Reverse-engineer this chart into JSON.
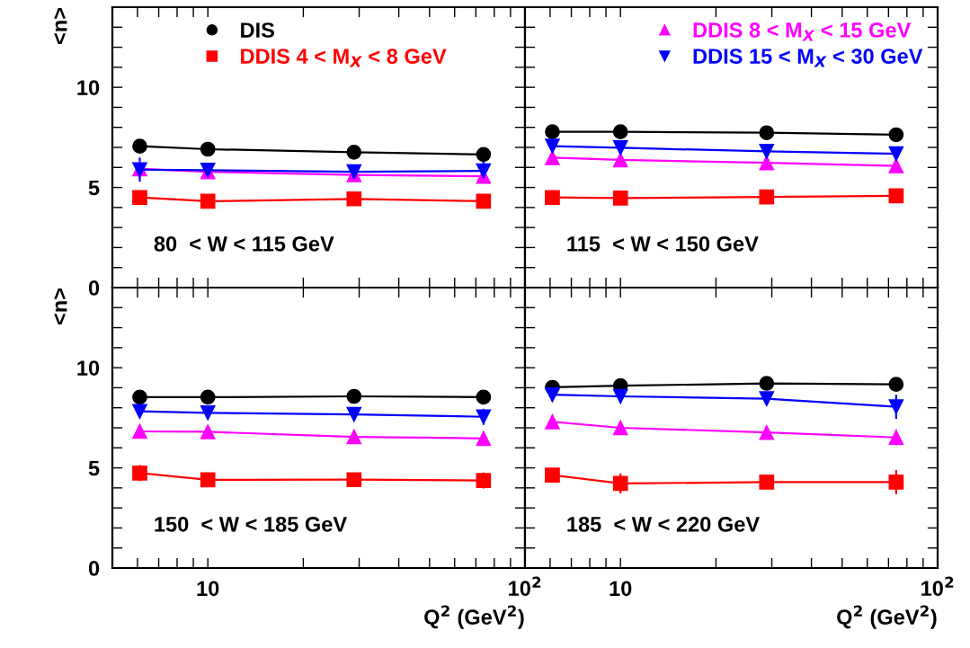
{
  "chart_data": [
    {
      "type": "line",
      "ylabel": "<n>",
      "x": [
        6.1,
        10,
        28.9,
        74
      ],
      "xlim": [
        5,
        100
      ],
      "ylim": [
        0,
        14
      ],
      "log": "x",
      "grid": false,
      "legend": "top",
      "tick_labels": "y",
      "annotations": [
        "80  < W < 115 GeV"
      ],
      "xticks": [
        {
          "value": 5,
          "label": null
        },
        {
          "value": 6,
          "label": null
        },
        {
          "value": 7,
          "label": null
        },
        {
          "value": 8,
          "label": null
        },
        {
          "value": 9,
          "label": null
        },
        {
          "value": 10,
          "label": null
        },
        {
          "value": 20,
          "label": null
        },
        {
          "value": 30,
          "label": null
        },
        {
          "value": 40,
          "label": null
        },
        {
          "value": 50,
          "label": null
        },
        {
          "value": 60,
          "label": null
        },
        {
          "value": 70,
          "label": null
        },
        {
          "value": 80,
          "label": null
        },
        {
          "value": 90,
          "label": null
        },
        {
          "value": 100,
          "label": null
        }
      ],
      "yticks": [
        0,
        {
          "value": 1,
          "label": null
        },
        {
          "value": 2,
          "label": null
        },
        {
          "value": 3,
          "label": null
        },
        {
          "value": 4,
          "label": null
        },
        5,
        {
          "value": 6,
          "label": null
        },
        {
          "value": 7,
          "label": null
        },
        {
          "value": 8,
          "label": null
        },
        {
          "value": 9,
          "label": null
        },
        10,
        {
          "value": 11,
          "label": null
        },
        {
          "value": 12,
          "label": null
        },
        {
          "value": 13,
          "label": null
        }
      ],
      "series": [
        {
          "name": "DIS",
          "color": "#000000",
          "marker": "circle",
          "values": [
            7.06,
            6.91,
            6.76,
            6.65
          ],
          "errors": [
            0.1,
            0.25,
            0.3,
            0.2
          ]
        },
        {
          "name": "DDIS 4 < M$_{X}$ < 8 GeV",
          "color": "#ff0000",
          "marker": "square",
          "values": [
            4.5,
            4.31,
            4.43,
            4.31
          ],
          "errors": [
            0.2,
            0.3,
            0.15,
            0.3
          ]
        },
        {
          "color": "#ff00ff",
          "marker": "triangle",
          "values": [
            5.93,
            5.78,
            5.63,
            5.56
          ],
          "errors": [
            null,
            0.2,
            0.2,
            0.3
          ]
        },
        {
          "color": "#0000ff",
          "marker": "triangle_down",
          "values": [
            5.89,
            5.86,
            5.78,
            5.83
          ],
          "errors": [
            0.6,
            0.25,
            0.3,
            0.5
          ]
        }
      ]
    },
    {
      "type": "line",
      "x": [
        6.1,
        10,
        28.9,
        74
      ],
      "xlim": [
        5,
        100
      ],
      "ylim": [
        0,
        14
      ],
      "log": "x",
      "grid": false,
      "legend": "top right",
      "tick_labels": false,
      "annotations": [
        "115  < W < 150 GeV"
      ],
      "xticks": [
        {
          "value": 5,
          "label": null
        },
        {
          "value": 6,
          "label": null
        },
        {
          "value": 7,
          "label": null
        },
        {
          "value": 8,
          "label": null
        },
        {
          "value": 9,
          "label": null
        },
        {
          "value": 10,
          "label": null
        },
        {
          "value": 20,
          "label": null
        },
        {
          "value": 30,
          "label": null
        },
        {
          "value": 40,
          "label": null
        },
        {
          "value": 50,
          "label": null
        },
        {
          "value": 60,
          "label": null
        },
        {
          "value": 70,
          "label": null
        },
        {
          "value": 80,
          "label": null
        },
        {
          "value": 90,
          "label": null
        },
        {
          "value": 100,
          "label": null
        }
      ],
      "yticks": [
        {
          "value": 0,
          "label": null
        },
        {
          "value": 1,
          "label": null
        },
        {
          "value": 2,
          "label": null
        },
        {
          "value": 3,
          "label": null
        },
        {
          "value": 4,
          "label": null
        },
        {
          "value": 5,
          "label": null
        },
        {
          "value": 6,
          "label": null
        },
        {
          "value": 7,
          "label": null
        },
        {
          "value": 8,
          "label": null
        },
        {
          "value": 9,
          "label": null
        },
        {
          "value": 10,
          "label": null
        },
        {
          "value": 11,
          "label": null
        },
        {
          "value": 12,
          "label": null
        },
        {
          "value": 13,
          "label": null
        }
      ],
      "series": [
        {
          "color": "#000000",
          "marker": "circle",
          "values": [
            7.78,
            7.78,
            7.73,
            7.63
          ],
          "errors": [
            0.1,
            0.1,
            0.1,
            0.1
          ]
        },
        {
          "color": "#ff0000",
          "marker": "square",
          "values": [
            4.5,
            4.47,
            4.53,
            4.58
          ],
          "errors": [
            0.35,
            0.3,
            0.15,
            0.35
          ]
        },
        {
          "name": "DDIS 8 < M$_{X}$ < 15 GeV",
          "color": "#ff00ff",
          "marker": "triangle",
          "values": [
            6.49,
            6.38,
            6.23,
            6.08
          ],
          "errors": [
            0.15,
            0.2,
            0.15,
            0.2
          ]
        },
        {
          "name": "DDIS 15 < M$_{X}$ < 30 GeV",
          "color": "#0000ff",
          "marker": "triangle_down",
          "values": [
            7.06,
            6.98,
            6.8,
            6.68
          ],
          "errors": [
            0.2,
            0.2,
            0.2,
            0.3
          ]
        }
      ]
    },
    {
      "type": "line",
      "ylabel": "<n>",
      "xlabel": "Q$^{2}$ (GeV$^{2}$)",
      "x": [
        6.1,
        10,
        28.9,
        74
      ],
      "xlim": [
        5,
        100
      ],
      "ylim": [
        0,
        14
      ],
      "log": "x",
      "grid": false,
      "annotations": [
        "150  < W < 185 GeV"
      ],
      "xticks": [
        {
          "value": 5,
          "label": null
        },
        {
          "value": 6,
          "label": null
        },
        {
          "value": 7,
          "label": null
        },
        {
          "value": 8,
          "label": null
        },
        {
          "value": 9,
          "label": null
        },
        {
          "value": 10,
          "label": "10"
        },
        {
          "value": 20,
          "label": null
        },
        {
          "value": 30,
          "label": null
        },
        {
          "value": 40,
          "label": null
        },
        {
          "value": 50,
          "label": null
        },
        {
          "value": 60,
          "label": null
        },
        {
          "value": 70,
          "label": null
        },
        {
          "value": 80,
          "label": null
        },
        {
          "value": 90,
          "label": null
        },
        {
          "value": 100,
          "label": "10$^{2}$"
        }
      ],
      "yticks": [
        0,
        {
          "value": 1,
          "label": null
        },
        {
          "value": 2,
          "label": null
        },
        {
          "value": 3,
          "label": null
        },
        {
          "value": 4,
          "label": null
        },
        5,
        {
          "value": 6,
          "label": null
        },
        {
          "value": 7,
          "label": null
        },
        {
          "value": 8,
          "label": null
        },
        {
          "value": 9,
          "label": null
        },
        10,
        {
          "value": 11,
          "label": null
        },
        {
          "value": 12,
          "label": null
        },
        {
          "value": 13,
          "label": null
        }
      ],
      "series": [
        {
          "color": "#000000",
          "marker": "circle",
          "values": [
            8.53,
            8.53,
            8.57,
            8.53
          ],
          "errors": [
            0.1,
            0.1,
            0.1,
            0.1
          ]
        },
        {
          "color": "#ff0000",
          "marker": "square",
          "values": [
            4.74,
            4.4,
            4.41,
            4.37
          ],
          "errors": [
            0.4,
            0.2,
            0.2,
            0.4
          ]
        },
        {
          "color": "#ff00ff",
          "marker": "triangle",
          "values": [
            6.82,
            6.8,
            6.55,
            6.47
          ],
          "errors": [
            0.3,
            0.2,
            0.25,
            0.2
          ]
        },
        {
          "color": "#0000ff",
          "marker": "triangle_down",
          "values": [
            7.82,
            7.75,
            7.67,
            7.55
          ],
          "errors": [
            0.2,
            0.2,
            0.2,
            0.4
          ]
        }
      ]
    },
    {
      "type": "line",
      "xlabel": "Q$^{2}$ (GeV$^{2}$)",
      "x": [
        6.1,
        10,
        28.9,
        74
      ],
      "xlim": [
        5,
        100
      ],
      "ylim": [
        0,
        14
      ],
      "log": "x",
      "grid": false,
      "tick_labels": "x",
      "annotations": [
        "185  < W < 220 GeV"
      ],
      "xticks": [
        {
          "value": 5,
          "label": null
        },
        {
          "value": 6,
          "label": null
        },
        {
          "value": 7,
          "label": null
        },
        {
          "value": 8,
          "label": null
        },
        {
          "value": 9,
          "label": null
        },
        {
          "value": 10,
          "label": "10"
        },
        {
          "value": 20,
          "label": null
        },
        {
          "value": 30,
          "label": null
        },
        {
          "value": 40,
          "label": null
        },
        {
          "value": 50,
          "label": null
        },
        {
          "value": 60,
          "label": null
        },
        {
          "value": 70,
          "label": null
        },
        {
          "value": 80,
          "label": null
        },
        {
          "value": 90,
          "label": null
        },
        {
          "value": 100,
          "label": "10$^{2}$"
        }
      ],
      "yticks": [
        {
          "value": 0,
          "label": null
        },
        {
          "value": 1,
          "label": null
        },
        {
          "value": 2,
          "label": null
        },
        {
          "value": 3,
          "label": null
        },
        {
          "value": 4,
          "label": null
        },
        {
          "value": 5,
          "label": null
        },
        {
          "value": 6,
          "label": null
        },
        {
          "value": 7,
          "label": null
        },
        {
          "value": 8,
          "label": null
        },
        {
          "value": 9,
          "label": null
        },
        {
          "value": 10,
          "label": null
        },
        {
          "value": 11,
          "label": null
        },
        {
          "value": 12,
          "label": null
        },
        {
          "value": 13,
          "label": null
        }
      ],
      "series": [
        {
          "color": "#000000",
          "marker": "circle",
          "values": [
            9.02,
            9.1,
            9.22,
            9.17
          ],
          "errors": [
            0.1,
            0.1,
            0.1,
            0.1
          ]
        },
        {
          "color": "#ff0000",
          "marker": "square",
          "values": [
            4.64,
            4.22,
            4.29,
            4.29
          ],
          "errors": [
            0.2,
            0.5,
            0.2,
            0.6
          ]
        },
        {
          "color": "#ff00ff",
          "marker": "triangle",
          "values": [
            7.3,
            7.0,
            6.77,
            6.52
          ],
          "errors": [
            0.3,
            0.3,
            0.2,
            0.4
          ]
        },
        {
          "color": "#0000ff",
          "marker": "triangle_down",
          "values": [
            8.65,
            8.57,
            8.45,
            8.05
          ],
          "errors": [
            0.3,
            0.3,
            0.2,
            0.6
          ]
        }
      ]
    }
  ]
}
